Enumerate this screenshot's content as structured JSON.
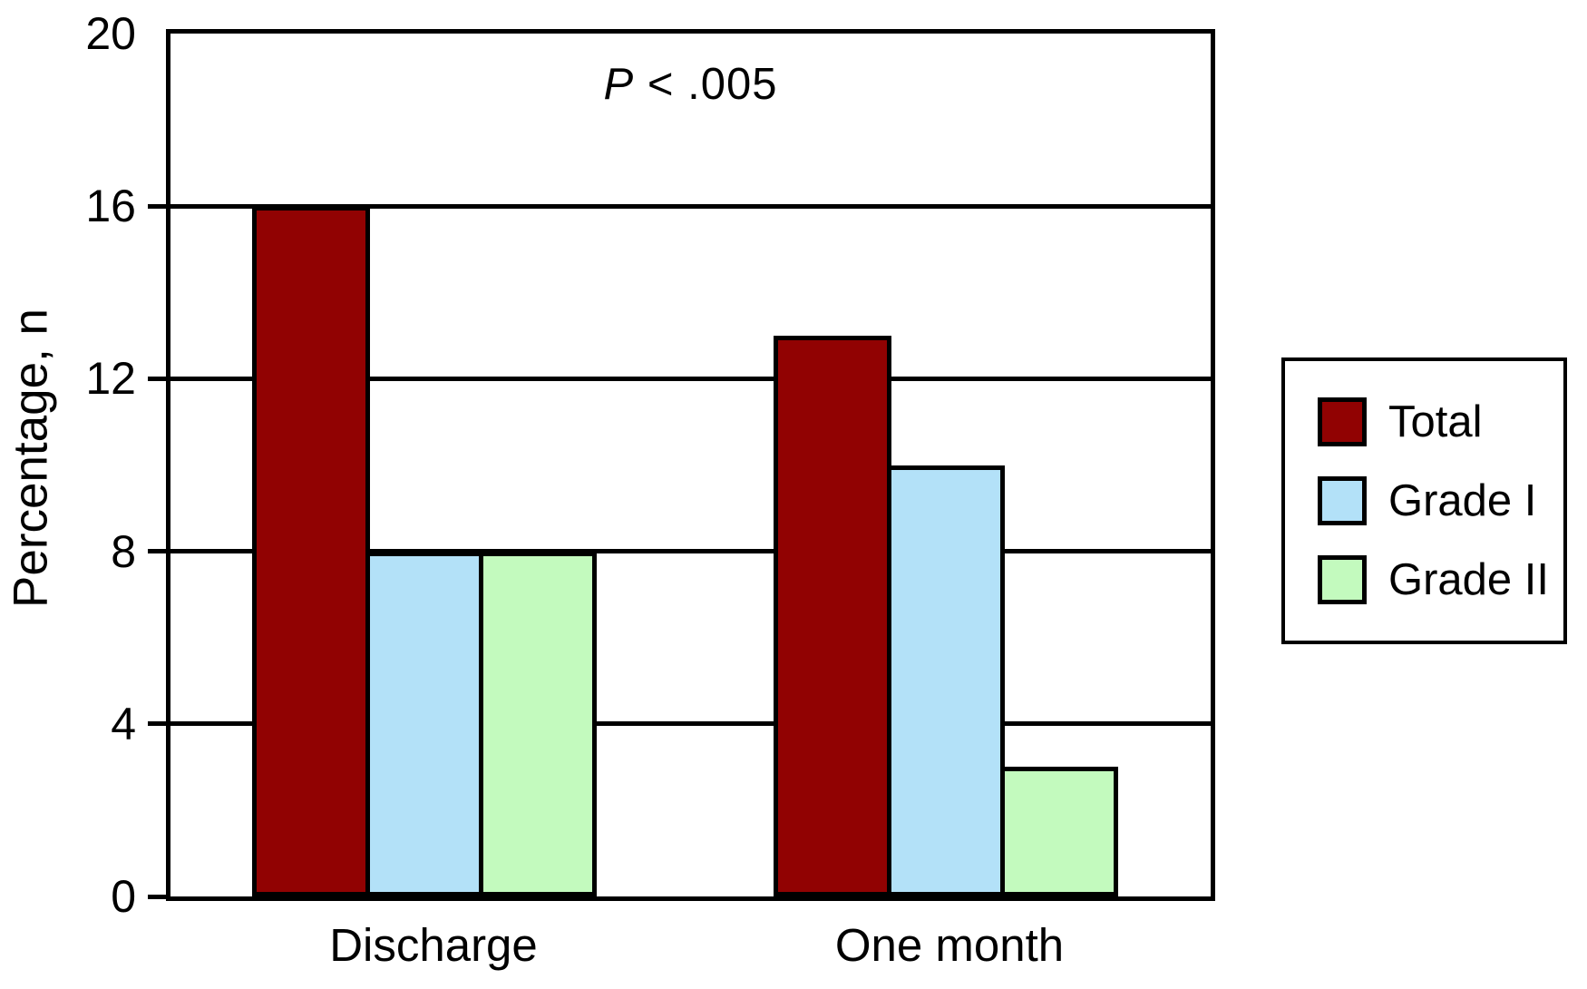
{
  "chart_data": {
    "type": "bar",
    "title": "",
    "annotation": "P < .005",
    "annotation_p": "P",
    "annotation_rest": " < .005",
    "categories": [
      "Discharge",
      "One month"
    ],
    "series": [
      {
        "name": "Total",
        "color": "#910202",
        "values": [
          16,
          13
        ]
      },
      {
        "name": "Grade I",
        "color": "#B3E1F8",
        "values": [
          8,
          10
        ]
      },
      {
        "name": "Grade II",
        "color": "#C3FABE",
        "values": [
          8,
          3
        ]
      }
    ],
    "xlabel": "",
    "ylabel": "Percentage, n",
    "ylim": [
      0,
      20
    ],
    "yticks": [
      0,
      4,
      8,
      12,
      16,
      20
    ],
    "ytick_marks": [
      0,
      4,
      8,
      12,
      16
    ],
    "gridline_values": [
      4,
      8,
      12,
      16
    ],
    "grid": "horizontal",
    "legend_position": "right",
    "bar_outline_color": "#000000",
    "background_color": "#ffffff"
  }
}
